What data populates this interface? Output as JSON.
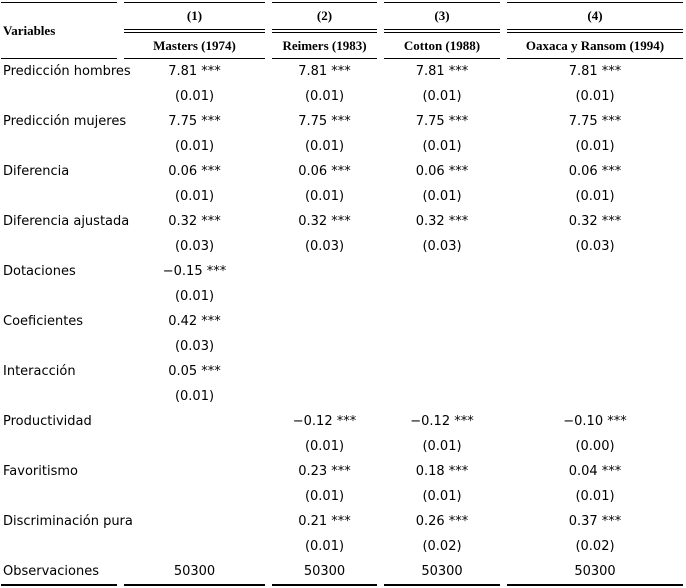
{
  "colors": {
    "background": "#ffffff",
    "text": "#000000",
    "rules": "#000000"
  },
  "table": {
    "variables_header": "Variables",
    "columns": [
      {
        "number": "(1)",
        "name": "Masters (1974)"
      },
      {
        "number": "(2)",
        "name": "Reimers (1983)"
      },
      {
        "number": "(3)",
        "name": "Cotton (1988)"
      },
      {
        "number": "(4)",
        "name": "Oaxaca y Ransom (1994)"
      }
    ],
    "rows": [
      {
        "label": "Predicción hombres",
        "values": [
          "7.81 ***",
          "7.81 ***",
          "7.81 ***",
          "7.81 ***"
        ],
        "se": [
          "(0.01)",
          "(0.01)",
          "(0.01)",
          "(0.01)"
        ]
      },
      {
        "label": "Predicción mujeres",
        "values": [
          "7.75 ***",
          "7.75 ***",
          "7.75 ***",
          "7.75 ***"
        ],
        "se": [
          "(0.01)",
          "(0.01)",
          "(0.01)",
          "(0.01)"
        ]
      },
      {
        "label": "Diferencia",
        "values": [
          "0.06 ***",
          "0.06 ***",
          "0.06 ***",
          "0.06 ***"
        ],
        "se": [
          "(0.01)",
          "(0.01)",
          "(0.01)",
          "(0.01)"
        ]
      },
      {
        "label": "Diferencia ajustada",
        "values": [
          "0.32 ***",
          "0.32 ***",
          "0.32 ***",
          "0.32 ***"
        ],
        "se": [
          "(0.03)",
          "(0.03)",
          "(0.03)",
          "(0.03)"
        ]
      },
      {
        "label": "Dotaciones",
        "values": [
          "−0.15 ***",
          "",
          "",
          ""
        ],
        "se": [
          "(0.01)",
          "",
          "",
          ""
        ]
      },
      {
        "label": "Coeficientes",
        "values": [
          "0.42 ***",
          "",
          "",
          ""
        ],
        "se": [
          "(0.03)",
          "",
          "",
          ""
        ]
      },
      {
        "label": "Interacción",
        "values": [
          "0.05 ***",
          "",
          "",
          ""
        ],
        "se": [
          "(0.01)",
          "",
          "",
          ""
        ]
      },
      {
        "label": "Productividad",
        "values": [
          "",
          "−0.12 ***",
          "−0.12 ***",
          "−0.10 ***"
        ],
        "se": [
          "",
          "(0.01)",
          "(0.01)",
          "(0.00)"
        ]
      },
      {
        "label": "Favoritismo",
        "values": [
          "",
          "0.23 ***",
          "0.18 ***",
          "0.04 ***"
        ],
        "se": [
          "",
          "(0.01)",
          "(0.01)",
          "(0.01)"
        ]
      },
      {
        "label": "Discriminación pura",
        "values": [
          "",
          "0.21 ***",
          "0.26 ***",
          "0.37 ***"
        ],
        "se": [
          "",
          "(0.01)",
          "(0.02)",
          "(0.02)"
        ]
      }
    ],
    "footer": {
      "label": "Observaciones",
      "values": [
        "50300",
        "50300",
        "50300",
        "50300"
      ]
    }
  }
}
